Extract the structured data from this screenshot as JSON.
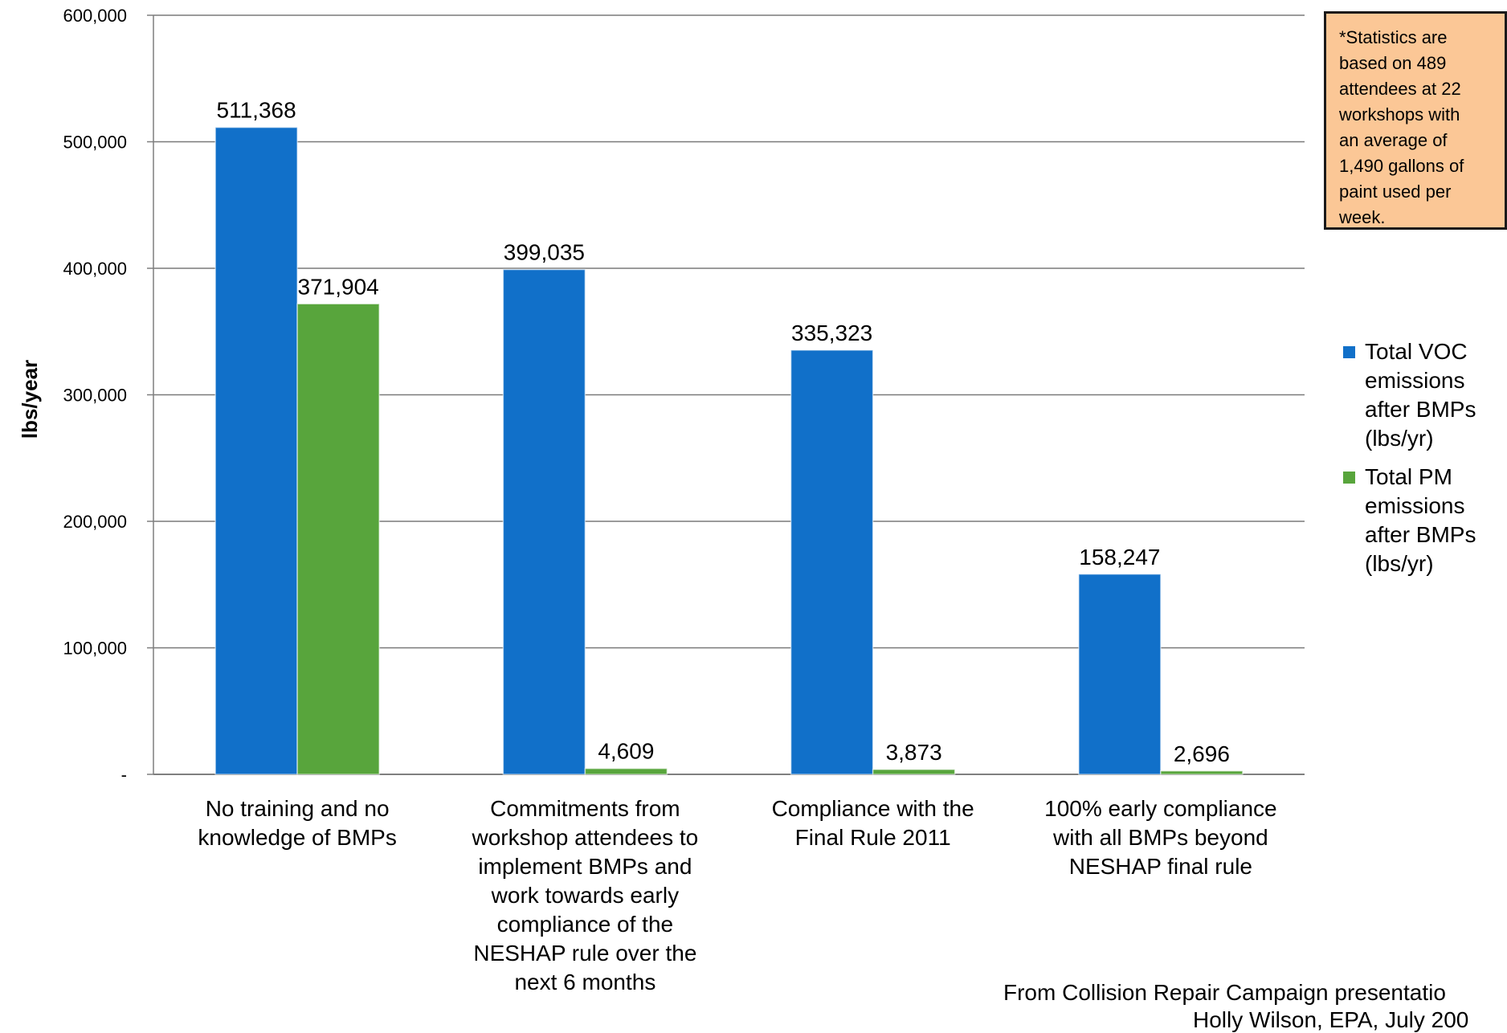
{
  "chart_data": {
    "type": "bar",
    "categories": [
      [
        "No training and no",
        "knowledge of BMPs"
      ],
      [
        "Commitments from",
        "workshop attendees to",
        "implement BMPs and",
        "work towards early",
        "compliance of the",
        "NESHAP rule over the",
        "next 6 months"
      ],
      [
        "Compliance with the",
        "Final Rule 2011"
      ],
      [
        "100% early compliance",
        "with all BMPs beyond",
        "NESHAP final rule"
      ]
    ],
    "series": [
      {
        "name": "Total VOC emissions after BMPs (lbs/yr)",
        "color": "#1170c9",
        "values": [
          511368,
          399035,
          335323,
          158247
        ],
        "labels": [
          "511,368",
          "399,035",
          "335,323",
          "158,247"
        ]
      },
      {
        "name": "Total PM emissions after BMPs (lbs/yr)",
        "color": "#58a53c",
        "values": [
          371904,
          4609,
          3873,
          2696
        ],
        "labels": [
          "371,904",
          "4,609",
          "3,873",
          "2,696"
        ]
      }
    ],
    "ylabel": "lbs/year",
    "ylim": [
      0,
      600000
    ],
    "yticks": [
      0,
      100000,
      200000,
      300000,
      400000,
      500000,
      600000
    ],
    "ytick_labels": [
      "-",
      "100,000",
      "200,000",
      "300,000",
      "400,000",
      "500,000",
      "600,000"
    ],
    "grid": true,
    "legend_position": "right"
  },
  "legend": {
    "voc": [
      "Total VOC",
      "emissions",
      "after BMPs",
      "(lbs/yr)"
    ],
    "pm": [
      "Total PM",
      "emissions",
      "after BMPs",
      "(lbs/yr)"
    ]
  },
  "note": {
    "lines": [
      "*Statistics are",
      "based on 489",
      "attendees at 22",
      "workshops with",
      "an average of",
      "1,490 gallons of",
      "paint used per",
      "week."
    ]
  },
  "source": {
    "line1": "From Collision Repair Campaign presentatio",
    "line2": "Holly Wilson, EPA, July 200"
  }
}
